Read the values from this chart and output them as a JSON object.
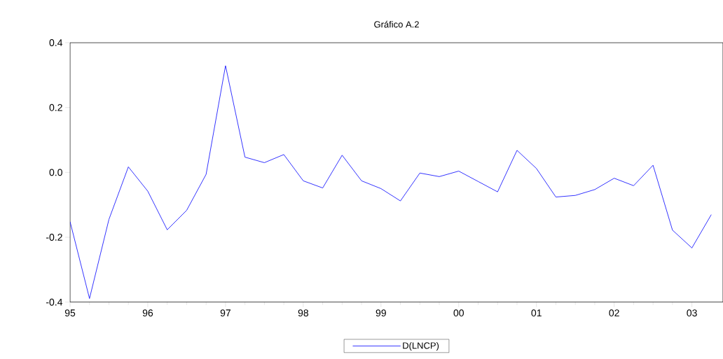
{
  "chart_data": {
    "type": "line",
    "title": "Gráfico A.2",
    "x": [
      1995.0,
      1995.25,
      1995.5,
      1995.75,
      1996.0,
      1996.25,
      1996.5,
      1996.75,
      1997.0,
      1997.25,
      1997.5,
      1997.75,
      1998.0,
      1998.25,
      1998.5,
      1998.75,
      1999.0,
      1999.25,
      1999.5,
      1999.75,
      2000.0,
      2000.25,
      2000.5,
      2000.75,
      2001.0,
      2001.25,
      2001.5,
      2001.75,
      2002.0,
      2002.25,
      2002.5,
      2002.75,
      2003.0,
      2003.25
    ],
    "series": [
      {
        "name": "D(LNCP)",
        "color": "#0000ff",
        "values": [
          -0.152,
          -0.389,
          -0.145,
          0.017,
          -0.058,
          -0.177,
          -0.117,
          -0.006,
          0.329,
          0.047,
          0.03,
          0.055,
          -0.026,
          -0.048,
          0.053,
          -0.026,
          -0.05,
          -0.088,
          -0.002,
          -0.013,
          0.004,
          -0.028,
          -0.06,
          0.068,
          0.012,
          -0.076,
          -0.071,
          -0.053,
          -0.018,
          -0.041,
          0.022,
          -0.178,
          -0.233,
          -0.13
        ]
      }
    ],
    "xlim": [
      1995,
      2003.4
    ],
    "xticks": [
      {
        "value": 1995,
        "label": "95"
      },
      {
        "value": 1996,
        "label": "96"
      },
      {
        "value": 1997,
        "label": "97"
      },
      {
        "value": 1998,
        "label": "98"
      },
      {
        "value": 1999,
        "label": "99"
      },
      {
        "value": 2000,
        "label": "00"
      },
      {
        "value": 2001,
        "label": "01"
      },
      {
        "value": 2002,
        "label": "02"
      },
      {
        "value": 2003,
        "label": "03"
      }
    ],
    "ylim": [
      -0.4,
      0.4
    ],
    "yticks": [
      {
        "value": -0.4,
        "label": "-0.4"
      },
      {
        "value": -0.2,
        "label": "-0.2"
      },
      {
        "value": 0.0,
        "label": "0.0"
      },
      {
        "value": 0.2,
        "label": "0.2"
      },
      {
        "value": 0.4,
        "label": "0.4"
      }
    ],
    "legend": "bottom",
    "marker": "none",
    "line_style": "solid",
    "grid": false
  }
}
